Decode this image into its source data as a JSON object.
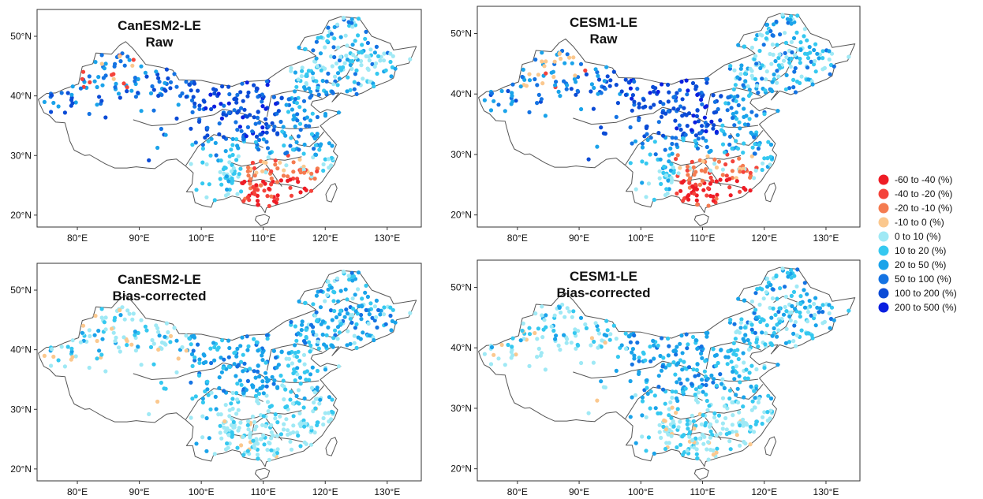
{
  "colors": {
    "c0": "#ee1c25",
    "c1": "#f4433b",
    "c2": "#f47b50",
    "c3": "#fbc88e",
    "c4": "#9fe9f5",
    "c5": "#35c8f0",
    "c6": "#1aa3ea",
    "c7": "#1473e3",
    "c8": "#0b4bd6",
    "c9": "#0a1fe0"
  },
  "legend": [
    {
      "label": "-60  to  -40 (%)",
      "color": "#ee1c25"
    },
    {
      "label": "-40  to  -20 (%)",
      "color": "#f4433b"
    },
    {
      "label": "-20  to  -10 (%)",
      "color": "#f47b50"
    },
    {
      "label": "-10  to  0 (%)",
      "color": "#fbc88e"
    },
    {
      "label": "0  to  10 (%)",
      "color": "#9fe9f5"
    },
    {
      "label": "10  to  20 (%)",
      "color": "#35c8f0"
    },
    {
      "label": "20  to  50 (%)",
      "color": "#1aa3ea"
    },
    {
      "label": "50  to  100 (%)",
      "color": "#1473e3"
    },
    {
      "label": "100  to  200 (%)",
      "color": "#0b4bd6"
    },
    {
      "label": "200  to  500 (%)",
      "color": "#0a1fe0"
    }
  ],
  "panels": [
    {
      "title1": "CanESM2-LE",
      "title2": "Raw",
      "mode": "raw_a"
    },
    {
      "title1": "CESM1-LE",
      "title2": "Raw",
      "mode": "raw_b"
    },
    {
      "title1": "CanESM2-LE",
      "title2": "Bias-corrected",
      "mode": "bc_a"
    },
    {
      "title1": "CESM1-LE",
      "title2": "Bias-corrected",
      "mode": "bc_b"
    }
  ],
  "axes": {
    "x_ticks": [
      "80°E",
      "90°E",
      "100°E",
      "110°E",
      "120°E",
      "130°E"
    ],
    "x_values": [
      80,
      90,
      100,
      110,
      120,
      130
    ],
    "y_ticks": [
      "20°N",
      "30°N",
      "40°N",
      "50°N"
    ],
    "y_values": [
      20,
      30,
      40,
      50
    ],
    "lon_range": [
      73.5,
      135.5
    ],
    "lat_range": [
      18,
      54.5
    ]
  }
}
